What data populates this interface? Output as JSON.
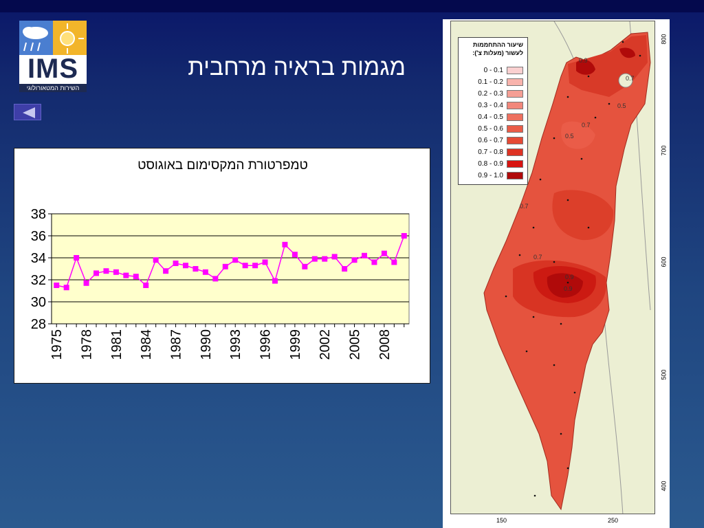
{
  "header": {
    "title": "מגמות בראיה מרחבית",
    "logo_text": "IMS",
    "logo_subtitle": "השירות המטאורולוגי"
  },
  "nav": {
    "back_icon": "triangle-left-icon"
  },
  "colors": {
    "accent": "#ff00ff",
    "plot_bg": "#ffffcc"
  },
  "chart_data": {
    "type": "line",
    "title": "טמפרטורת המקסימום באוגוסט",
    "xlabel": "",
    "ylabel": "",
    "x": [
      1975,
      1976,
      1977,
      1978,
      1979,
      1980,
      1981,
      1982,
      1983,
      1984,
      1985,
      1986,
      1987,
      1988,
      1989,
      1990,
      1991,
      1992,
      1993,
      1994,
      1995,
      1996,
      1997,
      1998,
      1999,
      2000,
      2001,
      2002,
      2003,
      2004,
      2005,
      2006,
      2007,
      2008,
      2009,
      2010
    ],
    "series": [
      {
        "values": [
          31.5,
          31.3,
          34.0,
          31.7,
          32.6,
          32.8,
          32.7,
          32.4,
          32.3,
          31.5,
          33.8,
          32.8,
          33.5,
          33.3,
          33.0,
          32.7,
          32.1,
          33.2,
          33.8,
          33.3,
          33.3,
          33.6,
          31.9,
          35.2,
          34.3,
          33.2,
          33.9,
          33.9,
          34.1,
          33.0,
          33.8,
          34.2,
          33.6,
          34.4,
          33.6,
          36.0
        ]
      }
    ],
    "ylim": [
      28,
      38
    ],
    "yticks": [
      "28",
      "30",
      "32",
      "34",
      "36",
      "38"
    ],
    "xtick_labels": [
      "1975",
      "1978",
      "1981",
      "1984",
      "1987",
      "1990",
      "1993",
      "1996",
      "1999",
      "2002",
      "2005",
      "2008"
    ],
    "grid": true,
    "legend": "none"
  },
  "map": {
    "legend_title": "שיעור ההתחממות לעשור (מעלות צ'):",
    "legend_items": [
      {
        "label": "0 - 0.1",
        "color": "#fad0d0"
      },
      {
        "label": "0.1 - 0.2",
        "color": "#f8b3ac"
      },
      {
        "label": "0.2 - 0.3",
        "color": "#f59e94"
      },
      {
        "label": "0.3 - 0.4",
        "color": "#f2877b"
      },
      {
        "label": "0.4 - 0.5",
        "color": "#ee705f"
      },
      {
        "label": "0.5 - 0.6",
        "color": "#ea5c48"
      },
      {
        "label": "0.6 - 0.7",
        "color": "#e54a35"
      },
      {
        "label": "0.7 - 0.8",
        "color": "#de3323"
      },
      {
        "label": "0.8 - 0.9",
        "color": "#d81410"
      },
      {
        "label": "0.9 - 1.0",
        "color": "#b00a0a"
      }
    ],
    "right_axis": [
      "800",
      "700",
      "600",
      "500",
      "400"
    ],
    "bottom_axis": [
      "150",
      "250"
    ],
    "contour_labels": [
      "0.9",
      "0.7",
      "0.5",
      "0.7",
      "0.5",
      "0.7",
      "0.7",
      "0.9",
      "0.9"
    ]
  }
}
